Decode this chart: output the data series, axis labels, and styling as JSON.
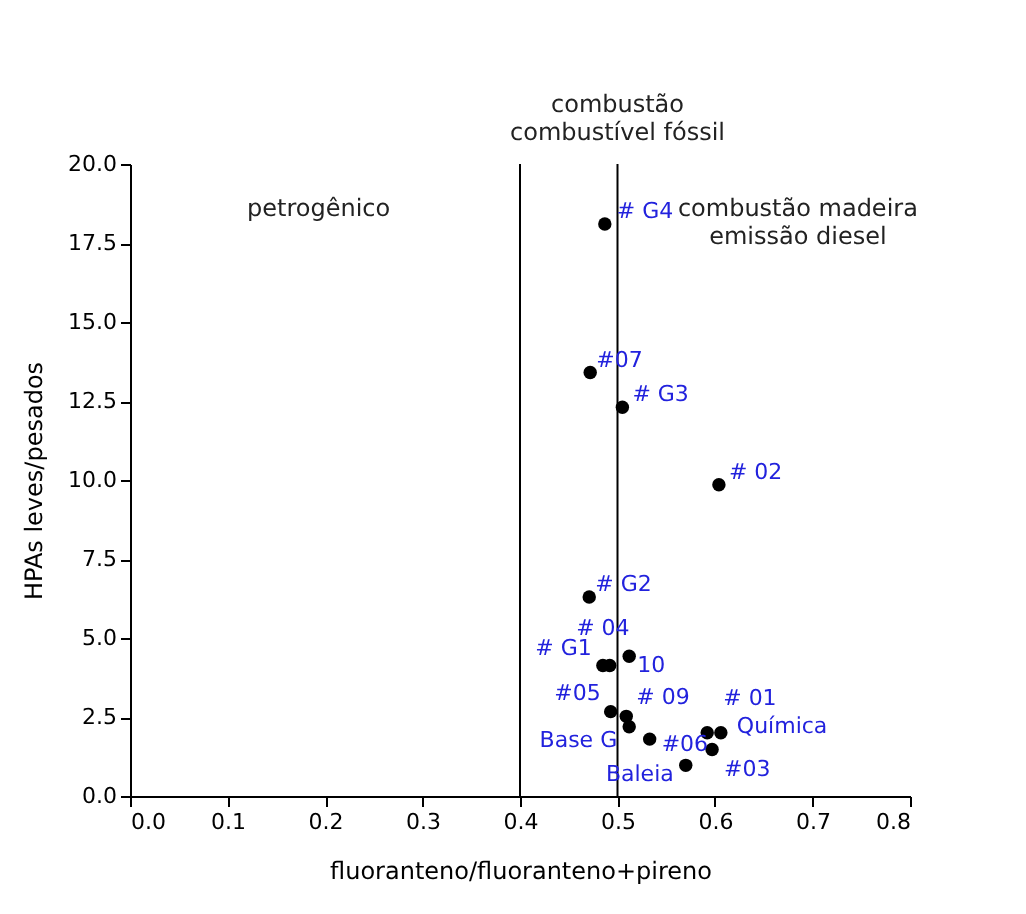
{
  "chart_data": {
    "type": "scatter",
    "xlabel": "fluoranteno/fluoranteno+pireno",
    "ylabel": "HPAs leves/pesados",
    "x": [
      0.487,
      0.472,
      0.505,
      0.604,
      0.471,
      0.485,
      0.492,
      0.512,
      0.493,
      0.509,
      0.512,
      0.533,
      0.592,
      0.606,
      0.597,
      0.57
    ],
    "series": [
      {
        "color": "#000000",
        "values": [
          18.1,
          13.4,
          12.3,
          9.85,
          6.3,
          4.13,
          4.13,
          4.42,
          2.67,
          2.52,
          2.19,
          1.8,
          2.0,
          2.0,
          1.47,
          0.97
        ]
      }
    ],
    "marker": "circle",
    "grid": false,
    "xlim": [
      0,
      0.8
    ],
    "ylim": [
      0,
      20
    ],
    "xticks": [
      {
        "value": 0,
        "label": "0.0"
      },
      {
        "value": 0.1,
        "label": "0.1"
      },
      {
        "value": 0.2,
        "label": "0.2"
      },
      {
        "value": 0.3,
        "label": "0.3"
      },
      {
        "value": 0.4,
        "label": "0.4"
      },
      {
        "value": 0.5,
        "label": "0.5"
      },
      {
        "value": 0.6,
        "label": "0.6"
      },
      {
        "value": 0.7,
        "label": "0.7"
      },
      {
        "value": 0.8,
        "label": "0.8"
      }
    ],
    "yticks": [
      {
        "value": 0,
        "label": "0.0"
      },
      2.5,
      {
        "value": 5,
        "label": "5.0"
      },
      7.5,
      {
        "value": 10,
        "label": "10.0"
      },
      12.5,
      {
        "value": 15,
        "label": "15.0"
      },
      17.5,
      {
        "value": 20,
        "label": "20.0"
      }
    ],
    "ref_lines": [
      {
        "axis": "x",
        "value": 0.4,
        "color": "#000000"
      },
      {
        "axis": "x",
        "value": 0.5,
        "color": "#000000"
      }
    ],
    "annotations": [
      "petrogênico",
      "combustão\ncombustível fóssil",
      "combustão madeira\nemissão diesel",
      {
        "text": "# G4",
        "x": 0.487,
        "y": 18.1
      },
      {
        "text": "#07",
        "x": 0.472,
        "y": 13.4
      },
      {
        "text": "# G3",
        "x": 0.505,
        "y": 12.3
      },
      {
        "text": "# 02",
        "x": 0.604,
        "y": 9.85
      },
      {
        "text": "# G2",
        "x": 0.471,
        "y": 6.3
      },
      {
        "text": "# 04",
        "x": 0.485,
        "y": 4.13
      },
      {
        "text": "# G1",
        "x": 0.492,
        "y": 4.13
      },
      {
        "text": "10",
        "x": 0.512,
        "y": 4.42
      },
      {
        "text": "#05",
        "x": 0.493,
        "y": 2.67
      },
      {
        "text": "# 09",
        "x": 0.509,
        "y": 2.52
      },
      {
        "text": "Base G",
        "x": 0.512,
        "y": 2.19
      },
      {
        "text": "#06",
        "x": 0.533,
        "y": 1.8
      },
      {
        "text": "# 01",
        "x": 0.592,
        "y": 2.0
      },
      {
        "text": "Química",
        "x": 0.606,
        "y": 2.0
      },
      {
        "text": "#03",
        "x": 0.597,
        "y": 1.47
      },
      {
        "text": "Baleia",
        "x": 0.57,
        "y": 0.97
      }
    ]
  }
}
